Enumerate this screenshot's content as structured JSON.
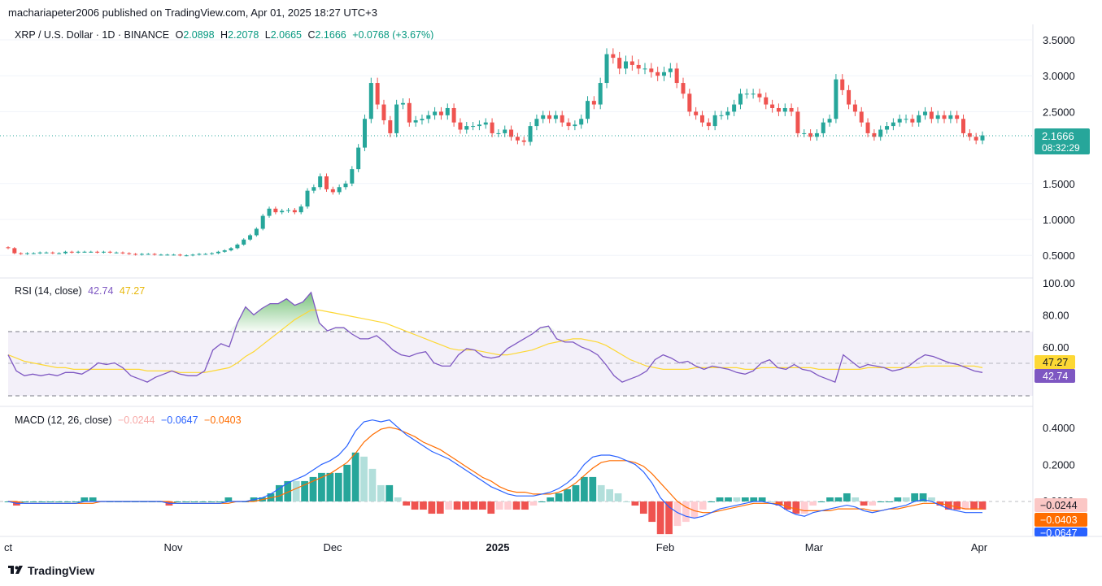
{
  "header": {
    "publisher": "machariapeter2006 published on TradingView.com, Apr 01, 2025 18:27 UTC+3"
  },
  "main_legend": {
    "symbol": "XRP / U.S. Dollar · 1D · BINANCE",
    "o_label": "O",
    "o_value": "2.0898",
    "h_label": "H",
    "h_value": "2.2078",
    "l_label": "L",
    "l_value": "2.0665",
    "c_label": "C",
    "c_value": "2.1666",
    "change": "+0.0768 (+3.67%)"
  },
  "rsi_legend": {
    "label": "RSI (14, close)",
    "rsi_value": "42.74",
    "ma_value": "47.27"
  },
  "macd_legend": {
    "label": "MACD (12, 26, close)",
    "hist_value": "−0.0244",
    "macd_value": "−0.0647",
    "signal_value": "−0.0403"
  },
  "price_tag": {
    "price": "2.1666",
    "countdown": "08:32:29"
  },
  "rsi_tags": {
    "ma": "47.27",
    "rsi": "42.74"
  },
  "macd_tags": {
    "hist": "−0.0244",
    "signal": "−0.0403",
    "macd": "−0.0647",
    "zero": "0.0000"
  },
  "footer": {
    "brand": "TradingView"
  },
  "colors": {
    "up": "#26a69a",
    "down": "#ef5350",
    "rsi": "#7e57c2",
    "rsi_ma": "#fdd835",
    "macd": "#2962ff",
    "signal": "#ff6d00"
  },
  "chart_data": [
    {
      "type": "candlestick",
      "title": "XRP / U.S. Dollar · 1D · BINANCE",
      "x_ticks": [
        "ct",
        "Nov",
        "Dec",
        "2025",
        "Feb",
        "Mar",
        "Apr"
      ],
      "y_ticks": [
        "3.5000",
        "3.0000",
        "2.5000",
        "1.5000",
        "1.0000",
        "0.5000"
      ],
      "ylim": [
        0.3,
        3.6
      ],
      "current_price": 2.1666,
      "close_series_approx": [
        0.6,
        0.53,
        0.52,
        0.53,
        0.53,
        0.54,
        0.54,
        0.53,
        0.53,
        0.55,
        0.54,
        0.55,
        0.55,
        0.55,
        0.54,
        0.55,
        0.54,
        0.54,
        0.53,
        0.52,
        0.51,
        0.52,
        0.52,
        0.51,
        0.51,
        0.51,
        0.51,
        0.5,
        0.5,
        0.51,
        0.52,
        0.52,
        0.53,
        0.55,
        0.57,
        0.6,
        0.65,
        0.72,
        0.78,
        0.87,
        1.05,
        1.15,
        1.1,
        1.12,
        1.13,
        1.1,
        1.18,
        1.4,
        1.45,
        1.6,
        1.42,
        1.38,
        1.45,
        1.5,
        1.7,
        2.0,
        2.4,
        2.9,
        2.6,
        2.38,
        2.2,
        2.6,
        2.62,
        2.35,
        2.38,
        2.4,
        2.45,
        2.5,
        2.45,
        2.55,
        2.35,
        2.25,
        2.3,
        2.3,
        2.32,
        2.35,
        2.2,
        2.2,
        2.25,
        2.15,
        2.1,
        2.08,
        2.3,
        2.4,
        2.45,
        2.4,
        2.45,
        2.35,
        2.3,
        2.32,
        2.4,
        2.65,
        2.6,
        2.9,
        3.3,
        3.25,
        3.1,
        3.2,
        3.15,
        3.1,
        3.1,
        3.05,
        3.0,
        3.05,
        3.1,
        2.9,
        2.75,
        2.5,
        2.45,
        2.35,
        2.3,
        2.45,
        2.45,
        2.5,
        2.6,
        2.75,
        2.75,
        2.75,
        2.7,
        2.6,
        2.55,
        2.5,
        2.55,
        2.5,
        2.2,
        2.2,
        2.15,
        2.2,
        2.35,
        2.4,
        2.95,
        2.8,
        2.6,
        2.5,
        2.35,
        2.2,
        2.15,
        2.25,
        2.3,
        2.35,
        2.4,
        2.4,
        2.35,
        2.45,
        2.5,
        2.4,
        2.45,
        2.4,
        2.45,
        2.4,
        2.2,
        2.15,
        2.1,
        2.17
      ]
    },
    {
      "type": "line",
      "title": "RSI (14, close)",
      "y_ticks": [
        "100.00",
        "80.00",
        "60.00"
      ],
      "ylim": [
        35,
        100
      ],
      "bands": [
        70,
        50,
        30
      ],
      "series": [
        {
          "name": "RSI",
          "last": 42.74
        },
        {
          "name": "RSI MA",
          "last": 47.27
        }
      ],
      "rsi_values_approx": [
        55,
        45,
        42,
        43,
        42,
        43,
        42,
        44,
        44,
        43,
        46,
        50,
        49,
        50,
        47,
        42,
        40,
        38,
        41,
        43,
        45,
        43,
        42,
        42,
        45,
        58,
        62,
        60,
        75,
        85,
        80,
        84,
        87,
        87,
        90,
        86,
        88,
        94,
        75,
        70,
        72,
        72,
        68,
        65,
        65,
        67,
        63,
        58,
        55,
        54,
        56,
        57,
        50,
        48,
        48,
        55,
        59,
        58,
        54,
        53,
        54,
        59,
        62,
        65,
        68,
        72,
        73,
        65,
        63,
        63,
        60,
        58,
        55,
        49,
        42,
        38,
        40,
        42,
        45,
        52,
        55,
        53,
        50,
        51,
        48,
        46,
        48,
        47,
        46,
        44,
        43,
        45,
        50,
        52,
        47,
        46,
        49,
        46,
        45,
        42,
        40,
        38,
        55,
        51,
        47,
        49,
        48,
        47,
        45,
        46,
        48,
        52,
        55,
        54,
        52,
        50,
        49,
        47,
        45,
        44
      ],
      "ma_values_approx": [
        55,
        53,
        51,
        50,
        49,
        48,
        47,
        47,
        46,
        46,
        46,
        46,
        46,
        46,
        46,
        46,
        46,
        45,
        45,
        45,
        45,
        44,
        44,
        44,
        44,
        45,
        46,
        47,
        50,
        54,
        57,
        61,
        65,
        69,
        73,
        77,
        80,
        83,
        83,
        82,
        81,
        80,
        79,
        78,
        77,
        76,
        75,
        73,
        71,
        69,
        67,
        65,
        63,
        61,
        59,
        58,
        58,
        58,
        57,
        56,
        55,
        55,
        56,
        57,
        58,
        60,
        62,
        63,
        64,
        65,
        65,
        64,
        63,
        61,
        58,
        55,
        52,
        50,
        48,
        47,
        46,
        46,
        46,
        46,
        47,
        47,
        47,
        47,
        47,
        47,
        46,
        46,
        47,
        47,
        47,
        47,
        47,
        47,
        47,
        46,
        46,
        46,
        46,
        46,
        46,
        47,
        47,
        47,
        47,
        47,
        47,
        47,
        48,
        48,
        48,
        48,
        48,
        48,
        48,
        47
      ]
    },
    {
      "type": "line",
      "title": "MACD (12, 26, close)",
      "y_ticks": [
        "0.4000",
        "0.2000",
        "0.0000"
      ],
      "ylim": [
        -0.18,
        0.45
      ],
      "series": [
        {
          "name": "MACD",
          "last": -0.0647
        },
        {
          "name": "Signal",
          "last": -0.0403
        },
        {
          "name": "Histogram",
          "last": -0.0244
        }
      ],
      "macd_values_approx": [
        0.0,
        -0.01,
        -0.01,
        -0.01,
        -0.01,
        -0.01,
        -0.01,
        -0.01,
        -0.01,
        0.0,
        0.0,
        0.0,
        0.0,
        0.0,
        0.0,
        0.0,
        0.0,
        0.0,
        0.0,
        -0.01,
        -0.01,
        -0.01,
        -0.01,
        -0.01,
        -0.01,
        -0.01,
        0.0,
        0.0,
        0.0,
        0.01,
        0.02,
        0.04,
        0.07,
        0.1,
        0.12,
        0.14,
        0.17,
        0.2,
        0.22,
        0.25,
        0.3,
        0.38,
        0.43,
        0.44,
        0.43,
        0.44,
        0.4,
        0.36,
        0.33,
        0.3,
        0.27,
        0.25,
        0.23,
        0.2,
        0.17,
        0.14,
        0.11,
        0.08,
        0.06,
        0.04,
        0.03,
        0.03,
        0.03,
        0.04,
        0.05,
        0.07,
        0.1,
        0.14,
        0.2,
        0.24,
        0.25,
        0.25,
        0.24,
        0.22,
        0.2,
        0.16,
        0.1,
        0.02,
        -0.03,
        -0.06,
        -0.08,
        -0.09,
        -0.08,
        -0.06,
        -0.04,
        -0.03,
        -0.02,
        -0.01,
        0.0,
        0.0,
        -0.01,
        -0.02,
        -0.05,
        -0.07,
        -0.08,
        -0.06,
        -0.05,
        -0.04,
        -0.03,
        -0.02,
        -0.03,
        -0.05,
        -0.06,
        -0.05,
        -0.04,
        -0.03,
        -0.02,
        0.0,
        0.01,
        0.0,
        -0.02,
        -0.04,
        -0.05,
        -0.06,
        -0.06,
        -0.06
      ],
      "signal_values_approx": [
        0.0,
        0.0,
        -0.01,
        -0.01,
        -0.01,
        -0.01,
        -0.01,
        -0.01,
        -0.01,
        -0.01,
        -0.01,
        0.0,
        0.0,
        0.0,
        0.0,
        0.0,
        0.0,
        0.0,
        0.0,
        0.0,
        -0.01,
        -0.01,
        -0.01,
        -0.01,
        -0.01,
        -0.01,
        -0.01,
        0.0,
        0.0,
        0.0,
        0.01,
        0.02,
        0.03,
        0.05,
        0.07,
        0.09,
        0.11,
        0.13,
        0.15,
        0.18,
        0.21,
        0.26,
        0.32,
        0.36,
        0.39,
        0.4,
        0.39,
        0.37,
        0.35,
        0.32,
        0.3,
        0.28,
        0.25,
        0.22,
        0.19,
        0.16,
        0.13,
        0.11,
        0.08,
        0.06,
        0.05,
        0.05,
        0.04,
        0.04,
        0.04,
        0.05,
        0.07,
        0.1,
        0.14,
        0.18,
        0.21,
        0.22,
        0.22,
        0.22,
        0.21,
        0.19,
        0.15,
        0.1,
        0.05,
        0.0,
        -0.03,
        -0.05,
        -0.06,
        -0.06,
        -0.05,
        -0.04,
        -0.03,
        -0.02,
        -0.01,
        -0.01,
        -0.01,
        -0.01,
        -0.03,
        -0.04,
        -0.05,
        -0.05,
        -0.05,
        -0.05,
        -0.04,
        -0.04,
        -0.04,
        -0.04,
        -0.05,
        -0.05,
        -0.04,
        -0.04,
        -0.03,
        -0.02,
        -0.01,
        -0.01,
        -0.01,
        -0.02,
        -0.03,
        -0.04,
        -0.04,
        -0.04
      ]
    }
  ]
}
